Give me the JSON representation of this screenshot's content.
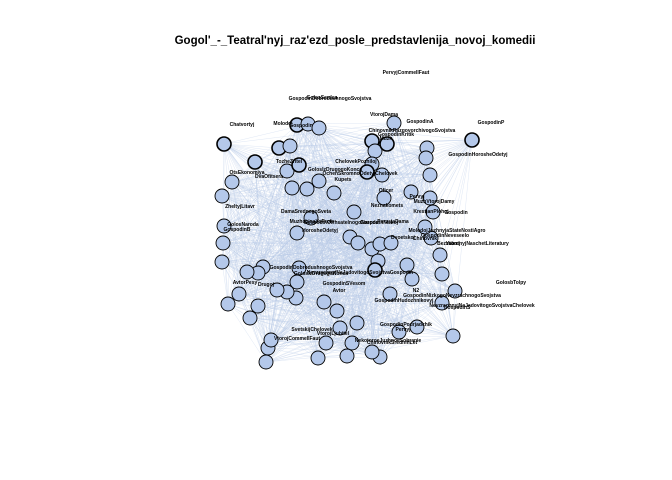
{
  "title": "Gogol'_-_Teatral'nyj_raz'ezd_posle_predstavlenija_novoj_komedii",
  "colors": {
    "node_fill": "#b4c8ea",
    "node_stroke": "#000000",
    "edge": "#b9c9e6"
  },
  "labels": [
    "PervyjCommeIlFaut",
    "GolosSerdca",
    "GospodinDobrodushnogoSvojstva",
    "VtorojDama",
    "GospodinA",
    "GospodinP",
    "Chatvortyj",
    "Molodoj",
    "Gospodin",
    "ChinovnikRazgovorchivogoSvojstva",
    "GospodinKritik",
    "Muzh",
    "GospodinHorosheOdetyj",
    "TozheZritel",
    "ChelovekPozhiloj",
    "GolosIzDrugogoKonca",
    "OchenSkromnoOdetyjChelovek",
    "Kupets",
    "DvaOfitsera",
    "OtsEkonomiya",
    "Oficer",
    "Pervyj",
    "MuzhVtorojDamy",
    "KrestjanPlohoj",
    "Gospodin",
    "ZheltyjLitavr",
    "DamaSrednegoSveta",
    "Neznakomets",
    "GolosNaroda",
    "GospodinB",
    "MuzhchinaVoProfe",
    "GospodinOtrhsatelnogoNaroda",
    "GospodinNizkoj",
    "PervajaDama",
    "MolodojJuzhnyjaStateNostiAgro",
    "Chinovnik",
    "HorosheOdetyj",
    "Dvoetskoj",
    "Vtoroj",
    "GospodinNeveseelo",
    "BezzabotnyjNaschetLiteratury",
    "GospodinDobrodushnogoSvojstva",
    "NevzrachnyjNaJadovitogoSvojstvaGospodin",
    "GolosIzDrugogoKonca",
    "Avtor",
    "Drugoj",
    "GospodinSVesom",
    "AvtorPesy",
    "GolosbTolpy",
    "N2",
    "GospodinNizkogoNevzrachnogoSvojstva",
    "GospodinHudozhnikovyj",
    "NevzrachnyjNaJadovitogoSvojstvaChelovek",
    "GospodinS",
    "SvetskijChelovek",
    "VtorojCommeIlFaut",
    "GospodinPodrjadchik",
    "Pervyj",
    "ChinovnikSrednihLet",
    "NekotoroeJuzhnoeSobranie",
    "VtorojLjubitel"
  ]
}
